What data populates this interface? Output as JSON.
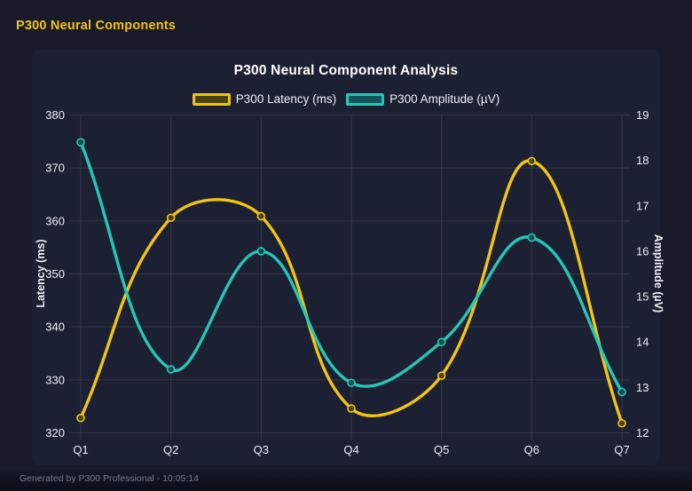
{
  "header": {
    "title": "P300 Neural Components"
  },
  "footer": {
    "text": "Generated by P300 Professional - 10:05:14"
  },
  "colors": {
    "page_bg": "#191b2a",
    "card_bg": "#1c2033",
    "grid": "rgba(255,255,255,0.11)",
    "header_text": "#f2c412",
    "footer_text": "#747b8c",
    "tick_text": "#edeff4",
    "latency_yellow": "#f2c511",
    "amplitude_teal": "#26c6b7"
  },
  "chart_data": {
    "type": "line",
    "title": "P300 Neural Component Analysis",
    "categories": [
      "Q1",
      "Q2",
      "Q3",
      "Q4",
      "Q5",
      "Q6",
      "Q7"
    ],
    "series": [
      {
        "name": "P300 Latency (ms)",
        "axis": "left",
        "color": "#f2c511",
        "swatch_fill": "#4a4314",
        "point_fill": "#4a4314",
        "values": [
          322.8,
          360.6,
          360.9,
          324.6,
          330.8,
          371.3,
          321.8
        ]
      },
      {
        "name": "P300 Amplitude (µV)",
        "axis": "right",
        "color": "#26c6b7",
        "swatch_fill": "#14555a",
        "point_fill": "#114e4d",
        "values": [
          18.4,
          13.4,
          16.0,
          13.1,
          14.0,
          16.3,
          12.9
        ]
      }
    ],
    "left_axis": {
      "label": "Latency (ms)",
      "min": 320,
      "max": 380,
      "step": 10
    },
    "right_axis": {
      "label": "Amplitude (µV)",
      "min": 12,
      "max": 19,
      "step": 1
    },
    "legend_position": "top",
    "grid": true,
    "curve": "spline-tension-0.4"
  }
}
